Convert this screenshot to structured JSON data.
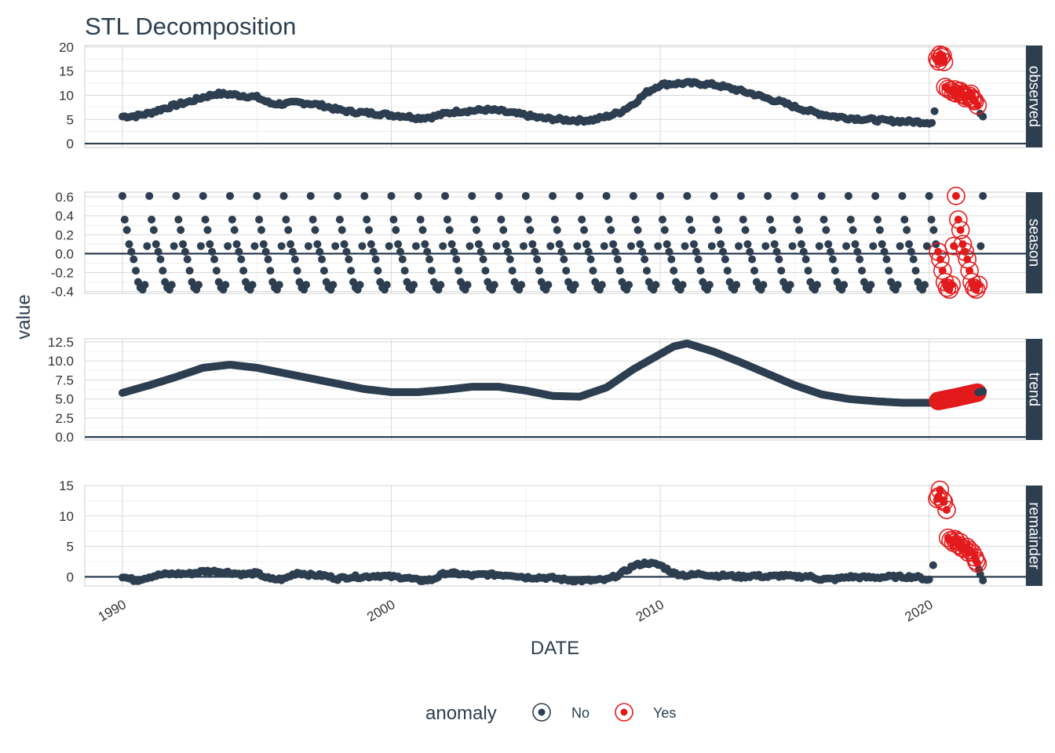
{
  "chart_data": {
    "type": "scatter",
    "title": "STL Decomposition",
    "xlabel": "DATE",
    "ylabel": "value",
    "x_ticks": [
      "1990",
      "2000",
      "2010",
      "2020"
    ],
    "xlim": [
      1988.6,
      2023.6
    ],
    "legend": {
      "title": "anomaly",
      "position": "bottom",
      "entries": [
        {
          "label": "No",
          "color": "#2c3e50"
        },
        {
          "label": "Yes",
          "color": "#e31a1c"
        }
      ]
    },
    "facets": [
      {
        "name": "observed",
        "ylim": [
          -0.8,
          20.3
        ],
        "y_ticks": [
          "0",
          "5",
          "10",
          "15",
          "20"
        ],
        "y_tick_values": [
          0,
          5,
          10,
          15,
          20
        ],
        "knots": [
          [
            1990.0,
            5.6
          ],
          [
            1990.5,
            5.7
          ],
          [
            1991.0,
            6.3
          ],
          [
            1991.5,
            7.2
          ],
          [
            1992.0,
            8.0
          ],
          [
            1992.5,
            8.7
          ],
          [
            1993.0,
            9.6
          ],
          [
            1993.5,
            10.3
          ],
          [
            1994.0,
            10.2
          ],
          [
            1994.5,
            9.9
          ],
          [
            1995.0,
            9.6
          ],
          [
            1995.5,
            8.3
          ],
          [
            1996.0,
            8.2
          ],
          [
            1996.5,
            8.5
          ],
          [
            1997.0,
            8.3
          ],
          [
            1997.5,
            7.8
          ],
          [
            1998.0,
            7.0
          ],
          [
            1998.5,
            6.6
          ],
          [
            1999.0,
            6.4
          ],
          [
            1999.5,
            6.2
          ],
          [
            2000.0,
            5.9
          ],
          [
            2000.5,
            5.7
          ],
          [
            2001.0,
            5.3
          ],
          [
            2001.5,
            5.5
          ],
          [
            2002.0,
            6.2
          ],
          [
            2002.5,
            6.7
          ],
          [
            2003.0,
            6.8
          ],
          [
            2003.5,
            7.0
          ],
          [
            2004.0,
            6.8
          ],
          [
            2004.5,
            6.3
          ],
          [
            2005.0,
            5.9
          ],
          [
            2005.5,
            5.3
          ],
          [
            2006.0,
            5.1
          ],
          [
            2006.5,
            4.9
          ],
          [
            2007.0,
            4.8
          ],
          [
            2007.5,
            4.9
          ],
          [
            2008.0,
            5.6
          ],
          [
            2008.5,
            6.5
          ],
          [
            2009.0,
            8.2
          ],
          [
            2009.5,
            10.6
          ],
          [
            2010.0,
            12.2
          ],
          [
            2010.5,
            12.4
          ],
          [
            2011.0,
            12.5
          ],
          [
            2011.5,
            12.4
          ],
          [
            2012.0,
            12.2
          ],
          [
            2012.5,
            11.6
          ],
          [
            2013.0,
            10.9
          ],
          [
            2013.5,
            10.2
          ],
          [
            2014.0,
            9.3
          ],
          [
            2014.5,
            8.6
          ],
          [
            2015.0,
            7.6
          ],
          [
            2015.5,
            6.8
          ],
          [
            2016.0,
            6.1
          ],
          [
            2016.5,
            5.6
          ],
          [
            2017.0,
            5.3
          ],
          [
            2017.5,
            5.1
          ],
          [
            2018.0,
            4.9
          ],
          [
            2018.5,
            4.7
          ],
          [
            2019.0,
            4.6
          ],
          [
            2019.5,
            4.5
          ],
          [
            2020.0,
            4.4
          ]
        ],
        "noise": 0.35,
        "normal_extra": [
          [
            2020.1,
            4.3
          ],
          [
            2020.2,
            6.7
          ],
          [
            2022.0,
            5.6
          ],
          [
            2021.9,
            6.2
          ]
        ],
        "anomalies": [
          [
            2020.3,
            17.6
          ],
          [
            2020.35,
            17.0
          ],
          [
            2020.4,
            18.4
          ],
          [
            2020.45,
            17.9
          ],
          [
            2020.5,
            18.2
          ],
          [
            2020.55,
            16.9
          ],
          [
            2020.6,
            11.7
          ],
          [
            2020.7,
            11.3
          ],
          [
            2020.8,
            11.0
          ],
          [
            2020.9,
            10.6
          ],
          [
            2021.0,
            10.4
          ],
          [
            2021.1,
            10.8
          ],
          [
            2021.2,
            10.2
          ],
          [
            2021.3,
            10.0
          ],
          [
            2021.4,
            9.7
          ],
          [
            2021.5,
            9.9
          ],
          [
            2021.6,
            9.4
          ],
          [
            2021.7,
            8.8
          ],
          [
            2021.8,
            7.9
          ],
          [
            2020.95,
            11.2
          ],
          [
            2021.15,
            10.9
          ],
          [
            2021.35,
            9.4
          ],
          [
            2021.55,
            10.3
          ],
          [
            2021.65,
            9.1
          ]
        ]
      },
      {
        "name": "season",
        "ylim": [
          -0.42,
          0.65
        ],
        "y_ticks": [
          "-0.4",
          "-0.2",
          "0.0",
          "0.2",
          "0.4",
          "0.6"
        ],
        "y_tick_values": [
          -0.4,
          -0.2,
          0.0,
          0.2,
          0.4,
          0.6
        ],
        "season_values": [
          0.61,
          0.36,
          0.25,
          0.1,
          0.02,
          -0.06,
          -0.18,
          -0.3,
          -0.36,
          -0.38,
          -0.33,
          0.08
        ],
        "start": 1990.0,
        "end": 2022.0,
        "anomalies_from": 2020.3,
        "anomalies_to": 2021.9
      },
      {
        "name": "trend",
        "ylim": [
          -0.4,
          12.9
        ],
        "y_ticks": [
          "0.0",
          "2.5",
          "5.0",
          "7.5",
          "10.0",
          "12.5"
        ],
        "y_tick_values": [
          0.0,
          2.5,
          5.0,
          7.5,
          10.0,
          12.5
        ],
        "knots": [
          [
            1990.0,
            5.8
          ],
          [
            1991.0,
            6.8
          ],
          [
            1992.0,
            7.9
          ],
          [
            1993.0,
            9.1
          ],
          [
            1994.0,
            9.5
          ],
          [
            1995.0,
            9.1
          ],
          [
            1996.0,
            8.4
          ],
          [
            1997.0,
            7.7
          ],
          [
            1998.0,
            7.0
          ],
          [
            1999.0,
            6.3
          ],
          [
            2000.0,
            5.9
          ],
          [
            2001.0,
            5.9
          ],
          [
            2002.0,
            6.2
          ],
          [
            2003.0,
            6.6
          ],
          [
            2004.0,
            6.6
          ],
          [
            2005.0,
            6.1
          ],
          [
            2006.0,
            5.4
          ],
          [
            2007.0,
            5.3
          ],
          [
            2008.0,
            6.5
          ],
          [
            2009.0,
            8.9
          ],
          [
            2010.0,
            10.9
          ],
          [
            2010.5,
            11.9
          ],
          [
            2011.0,
            12.3
          ],
          [
            2012.0,
            11.2
          ],
          [
            2013.0,
            9.8
          ],
          [
            2014.0,
            8.3
          ],
          [
            2015.0,
            6.8
          ],
          [
            2016.0,
            5.6
          ],
          [
            2017.0,
            5.0
          ],
          [
            2018.0,
            4.7
          ],
          [
            2019.0,
            4.5
          ],
          [
            2020.0,
            4.5
          ],
          [
            2021.0,
            5.2
          ],
          [
            2022.0,
            6.0
          ]
        ],
        "anomalies_from": 2020.3,
        "anomalies_to": 2021.8
      },
      {
        "name": "remainder",
        "ylim": [
          -1.5,
          15.0
        ],
        "y_ticks": [
          "0",
          "5",
          "10",
          "15"
        ],
        "y_tick_values": [
          0,
          5,
          10,
          15
        ],
        "knots": [
          [
            1990.0,
            0.0
          ],
          [
            1990.5,
            -0.6
          ],
          [
            1991.0,
            0.0
          ],
          [
            1991.5,
            0.4
          ],
          [
            1992.0,
            0.5
          ],
          [
            1992.5,
            0.5
          ],
          [
            1993.0,
            0.9
          ],
          [
            1993.5,
            0.9
          ],
          [
            1994.0,
            0.7
          ],
          [
            1994.5,
            0.4
          ],
          [
            1995.0,
            0.6
          ],
          [
            1995.5,
            -0.4
          ],
          [
            1996.0,
            -0.4
          ],
          [
            1996.5,
            0.7
          ],
          [
            1997.0,
            0.3
          ],
          [
            1997.5,
            0.2
          ],
          [
            1998.0,
            -0.3
          ],
          [
            1998.5,
            0.0
          ],
          [
            1999.0,
            0.0
          ],
          [
            1999.5,
            0.2
          ],
          [
            2000.0,
            0.0
          ],
          [
            2000.5,
            -0.1
          ],
          [
            2001.0,
            -0.6
          ],
          [
            2001.5,
            -0.5
          ],
          [
            2002.0,
            0.6
          ],
          [
            2002.5,
            0.5
          ],
          [
            2003.0,
            0.2
          ],
          [
            2003.5,
            0.4
          ],
          [
            2004.0,
            0.3
          ],
          [
            2004.5,
            0.3
          ],
          [
            2005.0,
            -0.1
          ],
          [
            2005.5,
            -0.1
          ],
          [
            2006.0,
            -0.2
          ],
          [
            2006.5,
            -0.5
          ],
          [
            2007.0,
            -0.6
          ],
          [
            2007.5,
            -0.6
          ],
          [
            2008.0,
            -0.5
          ],
          [
            2008.5,
            0.4
          ],
          [
            2009.0,
            1.8
          ],
          [
            2009.5,
            2.3
          ],
          [
            2010.0,
            1.9
          ],
          [
            2010.5,
            0.6
          ],
          [
            2011.0,
            0.2
          ],
          [
            2011.5,
            0.5
          ],
          [
            2012.0,
            0.2
          ],
          [
            2012.5,
            0.2
          ],
          [
            2013.0,
            0.0
          ],
          [
            2013.5,
            0.2
          ],
          [
            2014.0,
            0.0
          ],
          [
            2014.5,
            0.2
          ],
          [
            2015.0,
            0.0
          ],
          [
            2015.5,
            0.1
          ],
          [
            2016.0,
            -0.4
          ],
          [
            2016.5,
            -0.4
          ],
          [
            2017.0,
            0.0
          ],
          [
            2017.5,
            -0.1
          ],
          [
            2018.0,
            -0.1
          ],
          [
            2018.5,
            0.0
          ],
          [
            2019.0,
            0.0
          ],
          [
            2019.5,
            0.0
          ],
          [
            2020.0,
            -0.5
          ]
        ],
        "noise": 0.25,
        "normal_extra": [
          [
            2020.15,
            1.9
          ],
          [
            2021.85,
            1.2
          ],
          [
            2021.9,
            0.4
          ],
          [
            2022.0,
            -0.6
          ]
        ],
        "anomalies": [
          [
            2020.3,
            12.8
          ],
          [
            2020.35,
            13.2
          ],
          [
            2020.4,
            14.3
          ],
          [
            2020.5,
            12.6
          ],
          [
            2020.55,
            12.3
          ],
          [
            2020.65,
            11.0
          ],
          [
            2020.7,
            6.4
          ],
          [
            2020.8,
            6.0
          ],
          [
            2020.9,
            5.6
          ],
          [
            2021.0,
            5.9
          ],
          [
            2021.1,
            5.2
          ],
          [
            2021.2,
            4.8
          ],
          [
            2021.3,
            4.6
          ],
          [
            2021.4,
            4.9
          ],
          [
            2021.5,
            4.4
          ],
          [
            2021.6,
            4.0
          ],
          [
            2021.7,
            3.2
          ],
          [
            2021.75,
            2.6
          ],
          [
            2021.8,
            2.2
          ],
          [
            2020.95,
            6.2
          ],
          [
            2021.15,
            5.7
          ],
          [
            2021.45,
            4.0
          ]
        ]
      }
    ]
  }
}
